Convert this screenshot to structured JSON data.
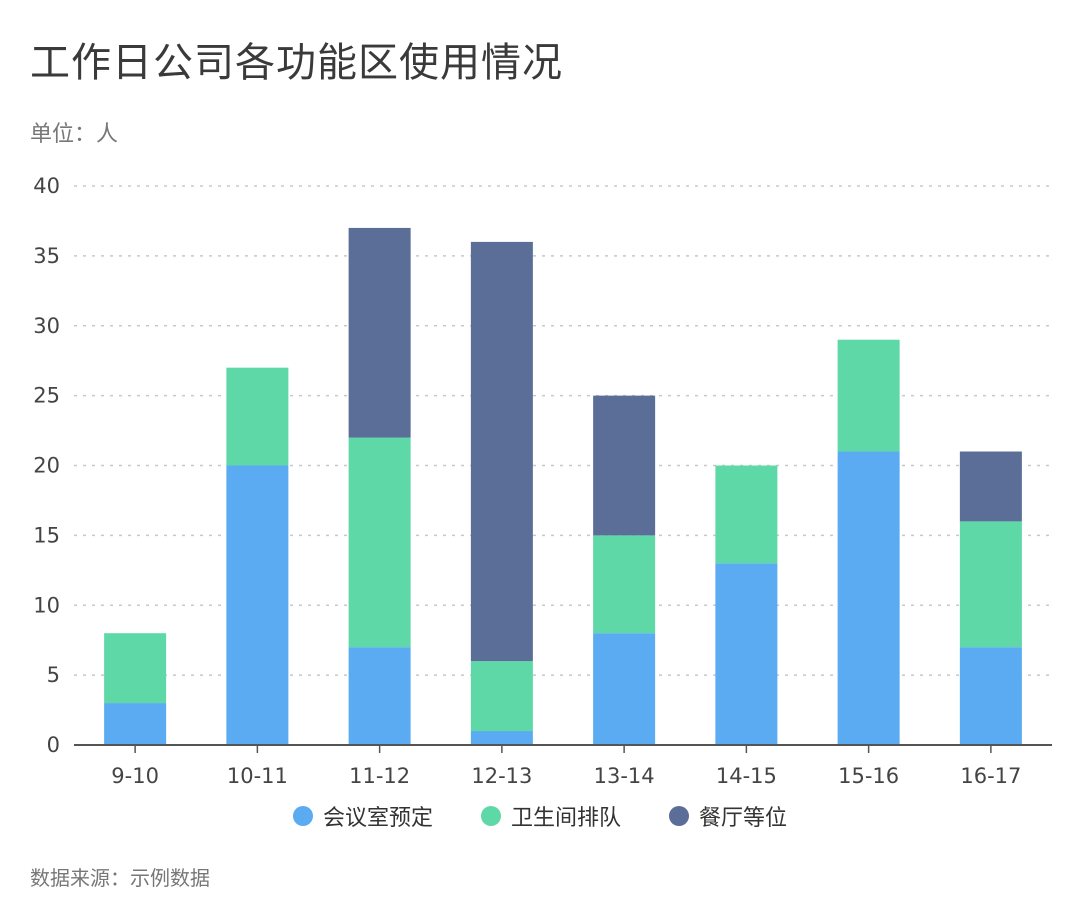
{
  "title": "工作日公司各功能区使用情况",
  "unit": "单位：人",
  "source": "数据来源：示例数据",
  "chart_data": {
    "type": "bar",
    "stacked": true,
    "categories": [
      "9-10",
      "10-11",
      "11-12",
      "12-13",
      "13-14",
      "14-15",
      "15-16",
      "16-17"
    ],
    "series": [
      {
        "name": "会议室预定",
        "color": "#5aabf2",
        "values": [
          3,
          20,
          7,
          1,
          8,
          13,
          21,
          7
        ]
      },
      {
        "name": "卫生间排队",
        "color": "#5fd8a8",
        "values": [
          5,
          7,
          15,
          5,
          7,
          7,
          8,
          9
        ]
      },
      {
        "name": "餐厅等位",
        "color": "#5a6e98",
        "values": [
          0,
          0,
          15,
          30,
          10,
          0,
          0,
          5
        ]
      }
    ],
    "ylim": [
      0,
      40
    ],
    "yticks": [
      0,
      5,
      10,
      15,
      20,
      25,
      30,
      35,
      40
    ],
    "grid": true,
    "legend_position": "bottom-center"
  }
}
